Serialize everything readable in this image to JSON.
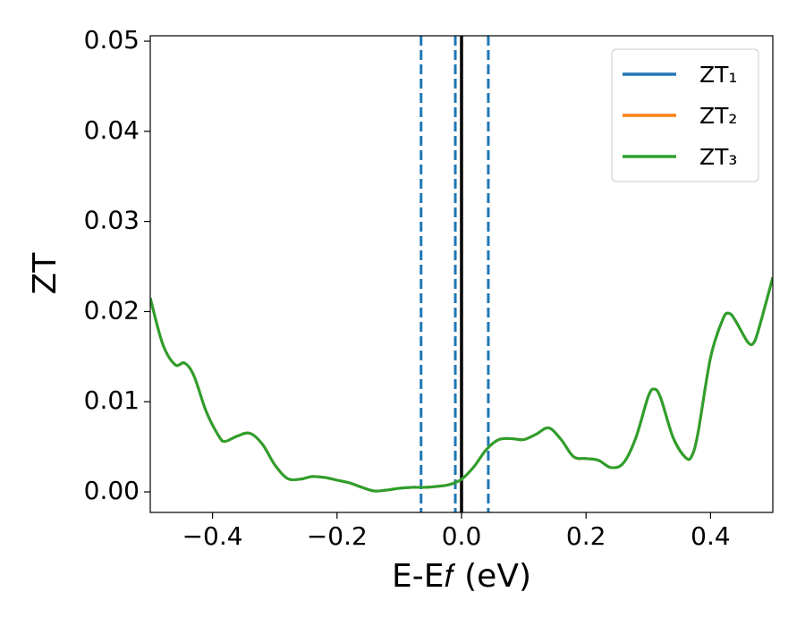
{
  "chart_data": {
    "type": "line",
    "xlabel": "E-E𝑓 (eV)",
    "ylabel": "ZT",
    "xlim": [
      -0.5,
      0.5
    ],
    "ylim": [
      -0.00228,
      0.0506
    ],
    "xticks": [
      {
        "value": -0.4,
        "label": "−0.4"
      },
      {
        "value": -0.2,
        "label": "−0.2"
      },
      {
        "value": 0.0,
        "label": "0.0"
      },
      {
        "value": 0.2,
        "label": "0.2"
      },
      {
        "value": 0.4,
        "label": "0.4"
      }
    ],
    "yticks": [
      {
        "value": 0,
        "label": "0.00"
      },
      {
        "value": 0.01,
        "label": "0.01"
      },
      {
        "value": 0.02,
        "label": "0.02"
      },
      {
        "value": 0.03,
        "label": "0.03"
      },
      {
        "value": 0.04,
        "label": "0.04"
      },
      {
        "value": 0.05,
        "label": "0.05"
      }
    ],
    "grid": false,
    "legend": "upper right",
    "x": [
      -0.5,
      -0.48,
      -0.46,
      -0.445,
      -0.43,
      -0.41,
      -0.39,
      -0.38,
      -0.36,
      -0.34,
      -0.32,
      -0.3,
      -0.28,
      -0.26,
      -0.24,
      -0.22,
      -0.2,
      -0.18,
      -0.16,
      -0.14,
      -0.12,
      -0.1,
      -0.08,
      -0.06,
      -0.04,
      -0.02,
      0.0,
      0.02,
      0.04,
      0.06,
      0.08,
      0.1,
      0.12,
      0.14,
      0.16,
      0.18,
      0.2,
      0.22,
      0.24,
      0.26,
      0.28,
      0.3,
      0.31,
      0.32,
      0.34,
      0.36,
      0.37,
      0.38,
      0.4,
      0.42,
      0.43,
      0.44,
      0.46,
      0.47,
      0.48,
      0.5
    ],
    "series": [
      {
        "name": "ZT₁",
        "color": "#1f77b4",
        "values": [
          0.0215,
          0.0164,
          0.0141,
          0.0143,
          0.0129,
          0.0089,
          0.0062,
          0.0056,
          0.0062,
          0.0065,
          0.0053,
          0.003,
          0.0015,
          0.0014,
          0.0017,
          0.0016,
          0.0013,
          0.001,
          0.0005,
          0.0001,
          0.0002,
          0.0004,
          0.0005,
          0.0005,
          0.0006,
          0.0008,
          0.0014,
          0.0028,
          0.0047,
          0.0058,
          0.0059,
          0.0058,
          0.0064,
          0.0071,
          0.0058,
          0.0039,
          0.0037,
          0.0035,
          0.0027,
          0.0032,
          0.006,
          0.0106,
          0.0114,
          0.0104,
          0.006,
          0.0038,
          0.004,
          0.0066,
          0.0149,
          0.0192,
          0.0198,
          0.019,
          0.0166,
          0.0166,
          0.0187,
          0.0238
        ]
      },
      {
        "name": "ZT₂",
        "color": "#ff7f0e",
        "values": [
          0.0215,
          0.0164,
          0.0141,
          0.0143,
          0.0129,
          0.0089,
          0.0062,
          0.0056,
          0.0062,
          0.0065,
          0.0053,
          0.003,
          0.0015,
          0.0014,
          0.0017,
          0.0016,
          0.0013,
          0.001,
          0.0005,
          0.0001,
          0.0002,
          0.0004,
          0.0005,
          0.0005,
          0.0006,
          0.0008,
          0.0014,
          0.0028,
          0.0047,
          0.0058,
          0.0059,
          0.0058,
          0.0064,
          0.0071,
          0.0058,
          0.0039,
          0.0037,
          0.0035,
          0.0027,
          0.0032,
          0.006,
          0.0106,
          0.0114,
          0.0104,
          0.006,
          0.0038,
          0.004,
          0.0066,
          0.0149,
          0.0192,
          0.0198,
          0.019,
          0.0166,
          0.0166,
          0.0187,
          0.0238
        ]
      },
      {
        "name": "ZT₃",
        "color": "#2ca02c",
        "values": [
          0.0215,
          0.0164,
          0.0141,
          0.0143,
          0.0129,
          0.0089,
          0.0062,
          0.0056,
          0.0062,
          0.0065,
          0.0053,
          0.003,
          0.0015,
          0.0014,
          0.0017,
          0.0016,
          0.0013,
          0.001,
          0.0005,
          0.0001,
          0.0002,
          0.0004,
          0.0005,
          0.0005,
          0.0006,
          0.0008,
          0.0014,
          0.0028,
          0.0047,
          0.0058,
          0.0059,
          0.0058,
          0.0064,
          0.0071,
          0.0058,
          0.0039,
          0.0037,
          0.0035,
          0.0027,
          0.0032,
          0.006,
          0.0106,
          0.0114,
          0.0104,
          0.006,
          0.0038,
          0.004,
          0.0066,
          0.0149,
          0.0192,
          0.0198,
          0.019,
          0.0166,
          0.0166,
          0.0187,
          0.0238
        ]
      }
    ],
    "vlines": [
      {
        "x": -0.065,
        "style": "dashed",
        "color": "#1f77b4"
      },
      {
        "x": -0.01,
        "style": "dashed",
        "color": "#1f77b4"
      },
      {
        "x": 0.043,
        "style": "dashed",
        "color": "#1f77b4"
      },
      {
        "x": 0,
        "style": "solid",
        "color": "#000000"
      }
    ]
  }
}
